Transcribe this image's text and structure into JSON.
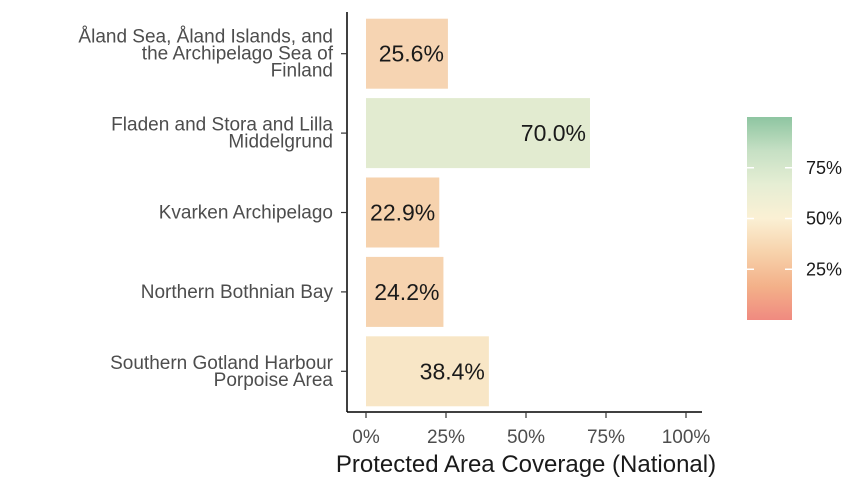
{
  "chart_data": {
    "type": "bar",
    "orientation": "horizontal",
    "categories": [
      [
        "Åland Sea, Åland Islands, and",
        "the Archipelago Sea of",
        "Finland"
      ],
      [
        "Fladen and Stora and Lilla",
        "Middelgrund"
      ],
      [
        "Kvarken Archipelago"
      ],
      [
        "Northern Bothnian Bay"
      ],
      [
        "Southern Gotland Harbour",
        "Porpoise Area"
      ]
    ],
    "values": [
      25.6,
      70.0,
      22.9,
      24.2,
      38.4
    ],
    "data_labels": [
      "25.6%",
      "70.0%",
      "22.9%",
      "24.2%",
      "38.4%"
    ],
    "bar_colors": [
      "#f6d4b2",
      "#e2ebd0",
      "#f6d2ad",
      "#f6d3af",
      "#f8e6c6"
    ],
    "xlabel": "Protected Area Coverage (National)",
    "xlim": [
      0,
      100
    ],
    "xticks": [
      0,
      25,
      50,
      75,
      100
    ],
    "xtick_labels": [
      "0%",
      "25%",
      "50%",
      "75%",
      "100%"
    ],
    "grid": false,
    "legend": {
      "type": "colorbar",
      "placement": "right",
      "range": [
        0,
        100
      ],
      "ticks": [
        25,
        50,
        75
      ],
      "tick_labels": [
        "25%",
        "50%",
        "75%"
      ],
      "colors": [
        "#f08a80",
        "#f3b189",
        "#f7d2ab",
        "#fbf0d4",
        "#e6eed4",
        "#c6e0c4",
        "#8ec5a1"
      ]
    }
  }
}
